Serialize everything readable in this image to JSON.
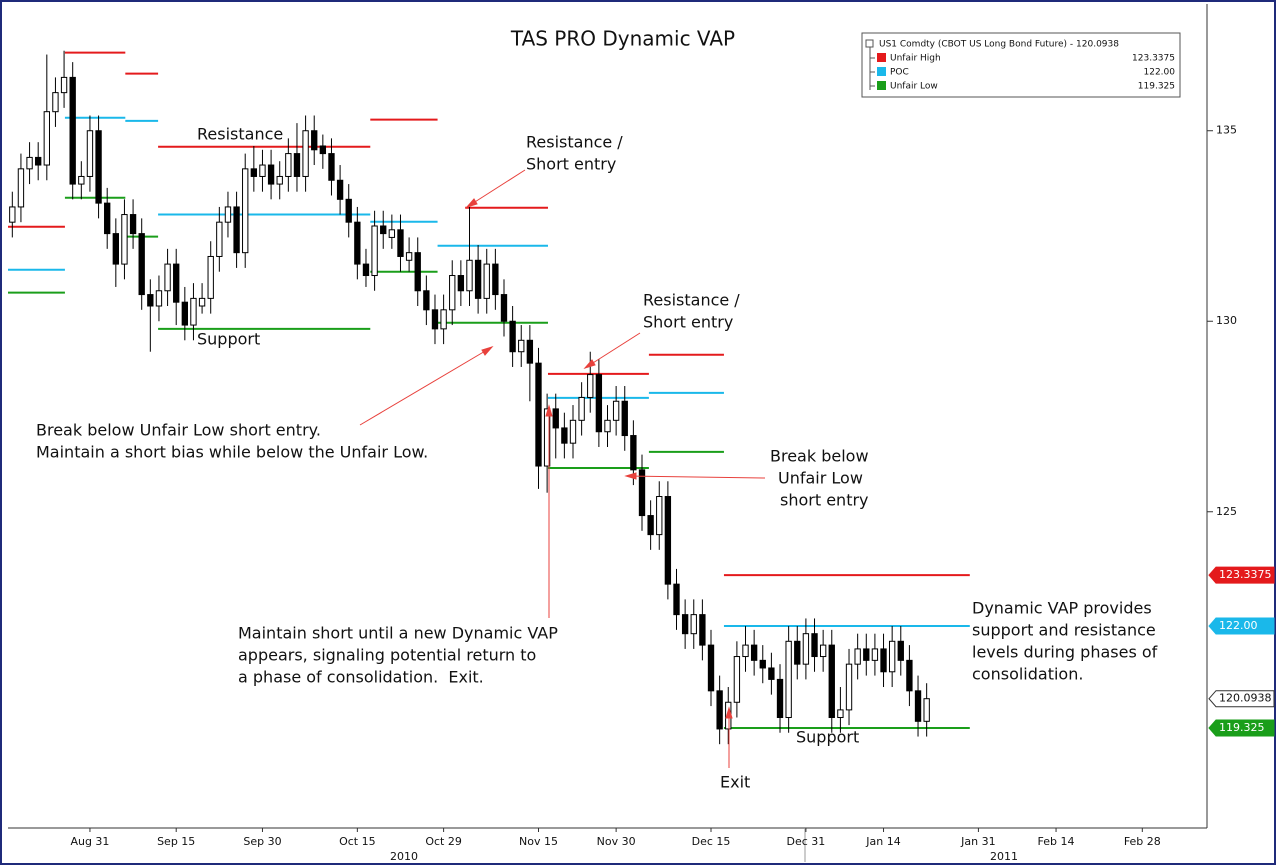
{
  "chart_data": {
    "type": "candlestick",
    "title": "TAS PRO Dynamic VAP",
    "categories": [
      null,
      null,
      null,
      null,
      null,
      null,
      null,
      null,
      null,
      "Aug 31",
      null,
      null,
      null,
      null,
      null,
      null,
      null,
      null,
      null,
      "Sep 15",
      null,
      null,
      null,
      null,
      null,
      null,
      null,
      null,
      null,
      "Sep 30",
      null,
      null,
      null,
      null,
      null,
      null,
      null,
      null,
      null,
      null,
      "Oct 15",
      null,
      null,
      null,
      null,
      null,
      null,
      null,
      null,
      null,
      "Oct 29",
      null,
      null,
      null,
      null,
      null,
      null,
      null,
      null,
      null,
      null,
      "Nov 15",
      null,
      null,
      null,
      null,
      null,
      null,
      null,
      null,
      "Nov 30",
      null,
      null,
      null,
      null,
      null,
      null,
      null,
      null,
      null,
      null,
      "Dec 15",
      null,
      null,
      null,
      null,
      null,
      null,
      null,
      null,
      null,
      null,
      "Dec 31",
      null,
      null,
      null,
      null,
      null,
      null,
      null,
      null,
      "Jan 14",
      null,
      null,
      null,
      null,
      null,
      null,
      null,
      null,
      null,
      null,
      "Jan 31",
      null,
      null,
      null,
      null,
      null,
      null,
      null,
      null,
      "Feb 14",
      null,
      null,
      null,
      null,
      null,
      null,
      null,
      null,
      null,
      "Feb 28",
      null,
      null,
      null,
      null,
      null,
      null,
      null
    ],
    "open": [
      132.6,
      133.0,
      134.0,
      134.3,
      134.1,
      135.5,
      136.0,
      136.4,
      133.6,
      133.8,
      135.0,
      133.1,
      132.3,
      131.5,
      132.8,
      132.3,
      130.7,
      130.4,
      130.8,
      131.5,
      130.5,
      129.9,
      130.4,
      130.6,
      131.7,
      132.6,
      133.0,
      131.8,
      134.0,
      133.8,
      134.1,
      133.6,
      133.8,
      134.4,
      133.8,
      135.0,
      134.6,
      134.4,
      133.7,
      133.2,
      132.6,
      131.5,
      131.2,
      132.5,
      132.2,
      132.4,
      131.6,
      131.8,
      130.8,
      130.3,
      129.8,
      130.3,
      131.2,
      130.8,
      131.6,
      130.6,
      131.5,
      130.7,
      130.0,
      129.2,
      129.5,
      128.9,
      126.2,
      127.7,
      127.2,
      126.8,
      127.4,
      128.0,
      128.6,
      127.1,
      127.4,
      127.9,
      127.0,
      126.1,
      124.9,
      124.4,
      125.4,
      123.1,
      122.3,
      121.8,
      122.3,
      121.5,
      120.3,
      119.3,
      120.0,
      121.2,
      121.5,
      121.1,
      120.9,
      120.6,
      119.6,
      121.6,
      121.0,
      121.8,
      121.2,
      121.5,
      119.6,
      119.8,
      121.0,
      121.4,
      121.1,
      121.4,
      120.8,
      121.6,
      121.1,
      120.3,
      119.5,
      null,
      null,
      null,
      null,
      null,
      null,
      null,
      null,
      null,
      null,
      null,
      null,
      null,
      null,
      null,
      null,
      null,
      null,
      null,
      null,
      null,
      null,
      null,
      null,
      null,
      null,
      null,
      null,
      null,
      null,
      null,
      null
    ],
    "high": [
      133.4,
      134.4,
      134.7,
      134.7,
      137.0,
      136.4,
      137.1,
      136.8,
      134.2,
      135.4,
      135.4,
      133.5,
      132.7,
      133.2,
      133.2,
      132.7,
      131.1,
      131.2,
      131.9,
      131.9,
      130.9,
      131.0,
      131.0,
      132.1,
      133.0,
      133.4,
      133.4,
      134.4,
      134.6,
      134.5,
      134.5,
      134.2,
      134.8,
      135.2,
      135.4,
      135.4,
      134.9,
      134.8,
      134.1,
      133.6,
      133.0,
      131.9,
      132.9,
      132.9,
      132.8,
      132.8,
      132.2,
      132.2,
      131.2,
      130.7,
      130.7,
      131.6,
      131.6,
      133.0,
      132.0,
      131.9,
      131.9,
      131.1,
      130.4,
      129.9,
      129.9,
      129.3,
      128.1,
      128.1,
      127.6,
      127.8,
      128.4,
      129.2,
      129.0,
      127.8,
      128.3,
      128.3,
      127.4,
      126.5,
      125.3,
      125.8,
      125.8,
      123.5,
      122.7,
      122.7,
      122.7,
      121.9,
      120.7,
      120.4,
      121.6,
      122.0,
      121.9,
      121.5,
      121.3,
      121.0,
      122.0,
      122.0,
      122.2,
      122.2,
      121.9,
      121.9,
      120.4,
      121.4,
      121.8,
      121.8,
      121.8,
      121.8,
      122.0,
      122.0,
      121.5,
      120.7,
      120.5,
      null,
      null,
      null,
      null,
      null,
      null,
      null,
      null,
      null,
      null,
      null,
      null,
      null,
      null,
      null,
      null,
      null,
      null,
      null,
      null,
      null,
      null,
      null,
      null,
      null,
      null,
      null,
      null,
      null,
      null,
      null,
      null
    ],
    "low": [
      132.2,
      132.6,
      133.6,
      133.7,
      133.7,
      135.1,
      135.6,
      133.2,
      133.2,
      133.4,
      132.7,
      131.9,
      130.9,
      131.1,
      131.9,
      130.3,
      129.2,
      130.0,
      130.4,
      129.9,
      129.5,
      129.5,
      130.2,
      130.2,
      131.3,
      132.2,
      131.4,
      131.4,
      133.4,
      133.4,
      133.2,
      133.2,
      133.4,
      133.4,
      133.4,
      134.1,
      134.0,
      133.3,
      132.8,
      132.2,
      131.1,
      130.9,
      130.8,
      131.9,
      131.9,
      131.3,
      131.3,
      130.4,
      129.9,
      129.4,
      129.4,
      129.9,
      130.4,
      130.4,
      130.2,
      130.2,
      130.3,
      129.6,
      128.8,
      128.8,
      127.9,
      125.6,
      125.5,
      126.4,
      126.4,
      126.4,
      127.0,
      127.6,
      126.7,
      126.7,
      127.0,
      126.6,
      125.7,
      124.5,
      124.0,
      124.0,
      122.7,
      121.9,
      121.4,
      121.4,
      121.1,
      119.9,
      118.9,
      118.9,
      119.6,
      120.8,
      120.7,
      120.5,
      120.2,
      119.2,
      119.2,
      120.6,
      120.6,
      120.8,
      120.8,
      119.2,
      119.2,
      119.4,
      120.6,
      120.7,
      120.7,
      120.4,
      120.4,
      120.7,
      119.9,
      119.1,
      119.1,
      null,
      null,
      null,
      null,
      null,
      null,
      null,
      null,
      null,
      null,
      null,
      null,
      null,
      null,
      null,
      null,
      null,
      null,
      null,
      null,
      null,
      null,
      null,
      null,
      null,
      null,
      null,
      null,
      null,
      null,
      null,
      null
    ],
    "close": [
      133.0,
      134.0,
      134.3,
      134.1,
      135.5,
      136.0,
      136.4,
      133.6,
      133.8,
      135.0,
      133.1,
      132.3,
      131.5,
      132.8,
      132.3,
      130.7,
      130.4,
      130.8,
      131.5,
      130.5,
      129.9,
      130.6,
      130.6,
      131.7,
      132.6,
      133.0,
      131.8,
      134.0,
      133.8,
      134.1,
      133.6,
      133.8,
      134.4,
      133.8,
      135.0,
      134.5,
      134.4,
      133.7,
      133.2,
      132.6,
      131.5,
      131.2,
      132.5,
      132.3,
      132.4,
      131.7,
      131.8,
      130.8,
      130.3,
      129.8,
      130.3,
      131.2,
      130.8,
      131.6,
      130.6,
      131.5,
      130.7,
      130.0,
      129.2,
      129.5,
      128.9,
      126.2,
      127.7,
      127.2,
      126.8,
      127.4,
      128.0,
      128.6,
      127.1,
      127.4,
      127.9,
      127.0,
      126.1,
      124.9,
      124.4,
      125.4,
      123.1,
      122.3,
      121.8,
      122.3,
      121.5,
      120.3,
      119.3,
      120.0,
      121.2,
      121.5,
      121.1,
      120.9,
      120.6,
      119.6,
      121.6,
      121.0,
      121.8,
      121.2,
      121.5,
      119.6,
      119.8,
      121.0,
      121.4,
      121.1,
      121.4,
      120.8,
      121.6,
      121.1,
      120.3,
      119.5,
      120.0938,
      null,
      null,
      null,
      null,
      null,
      null,
      null,
      null,
      null,
      null,
      null,
      null,
      null,
      null,
      null,
      null,
      null,
      null,
      null,
      null,
      null,
      null,
      null,
      null,
      null,
      null,
      null,
      null,
      null,
      null,
      null,
      null
    ],
    "up_color": "#ffffff",
    "down_color": "#000000",
    "ylim": [
      116.7,
      138.3
    ],
    "yticks": [
      125,
      130,
      135
    ],
    "year_labels": [
      "2010",
      "2011"
    ],
    "legend_title": "US1 Comdty (CBOT US Long Bond Future) - 120.0938",
    "series": [
      {
        "name": "Unfair High",
        "color": "#e41a1c",
        "segments": [
          {
            "value": 132.48,
            "x_start": 0,
            "x_end": 6.6
          },
          {
            "value": 137.05,
            "x_start": 6.6,
            "x_end": 13.6
          },
          {
            "value": 136.5,
            "x_start": 13.6,
            "x_end": 17.4
          },
          {
            "value": 134.58,
            "x_start": 17.4,
            "x_end": 42
          },
          {
            "value": 135.29,
            "x_start": 42,
            "x_end": 49.8
          },
          {
            "value": 132.98,
            "x_start": 53,
            "x_end": 62.6
          },
          {
            "value": 128.62,
            "x_start": 62.6,
            "x_end": 74.3
          },
          {
            "value": 129.12,
            "x_start": 74.3,
            "x_end": 83
          },
          {
            "value": 123.3375,
            "x_start": 83,
            "x_end": 111.5
          }
        ]
      },
      {
        "name": "POC",
        "color": "#1ab8ea",
        "segments": [
          {
            "value": 131.35,
            "x_start": 0,
            "x_end": 6.6
          },
          {
            "value": 135.34,
            "x_start": 6.6,
            "x_end": 13.6
          },
          {
            "value": 135.26,
            "x_start": 13.6,
            "x_end": 17.4
          },
          {
            "value": 132.8,
            "x_start": 17.4,
            "x_end": 42
          },
          {
            "value": 132.61,
            "x_start": 42,
            "x_end": 49.8
          },
          {
            "value": 131.98,
            "x_start": 49.8,
            "x_end": 62.6
          },
          {
            "value": 127.99,
            "x_start": 62.6,
            "x_end": 74.3
          },
          {
            "value": 128.12,
            "x_start": 74.3,
            "x_end": 83
          },
          {
            "value": 122.0,
            "x_start": 83,
            "x_end": 111.5
          }
        ]
      },
      {
        "name": "Unfair Low",
        "color": "#1a9e1a",
        "segments": [
          {
            "value": 130.75,
            "x_start": 0,
            "x_end": 6.6
          },
          {
            "value": 133.24,
            "x_start": 6.6,
            "x_end": 13.6
          },
          {
            "value": 132.22,
            "x_start": 13.6,
            "x_end": 17.4
          },
          {
            "value": 129.8,
            "x_start": 17.4,
            "x_end": 42
          },
          {
            "value": 131.3,
            "x_start": 42,
            "x_end": 49.8
          },
          {
            "value": 129.96,
            "x_start": 49.8,
            "x_end": 62.6
          },
          {
            "value": 126.15,
            "x_start": 62.6,
            "x_end": 74.3
          },
          {
            "value": 126.57,
            "x_start": 74.3,
            "x_end": 83
          },
          {
            "value": 119.325,
            "x_start": 83,
            "x_end": 111.5
          }
        ]
      }
    ],
    "price_tags": [
      {
        "value": 123.3375,
        "label": "123.3375",
        "color": "#e41a1c"
      },
      {
        "value": 122.0,
        "label": "122.00",
        "color": "#1ab8ea"
      },
      {
        "value": 120.0938,
        "label": "120.0938",
        "color": "#ffffff"
      },
      {
        "value": 119.325,
        "label": "119.325",
        "color": "#1a9e1a"
      }
    ],
    "annotations": [
      [
        "Resistance"
      ],
      [
        "Support"
      ],
      [
        "Resistance /",
        "Short entry"
      ],
      [
        "Resistance /",
        "Short entry"
      ],
      [
        "Break below Unfair Low short entry.",
        "Maintain a short bias while below the Unfair Low."
      ],
      [
        "Break below",
        "Unfair Low",
        "short entry"
      ],
      [
        "Maintain short until a new Dynamic VAP",
        "appears, signaling potential return to",
        "a phase of consolidation.  Exit."
      ],
      [
        "Dynamic VAP provides",
        "support and resistance",
        "levels during phases of",
        "consolidation."
      ],
      [
        "Support"
      ],
      [
        "Exit"
      ]
    ]
  }
}
